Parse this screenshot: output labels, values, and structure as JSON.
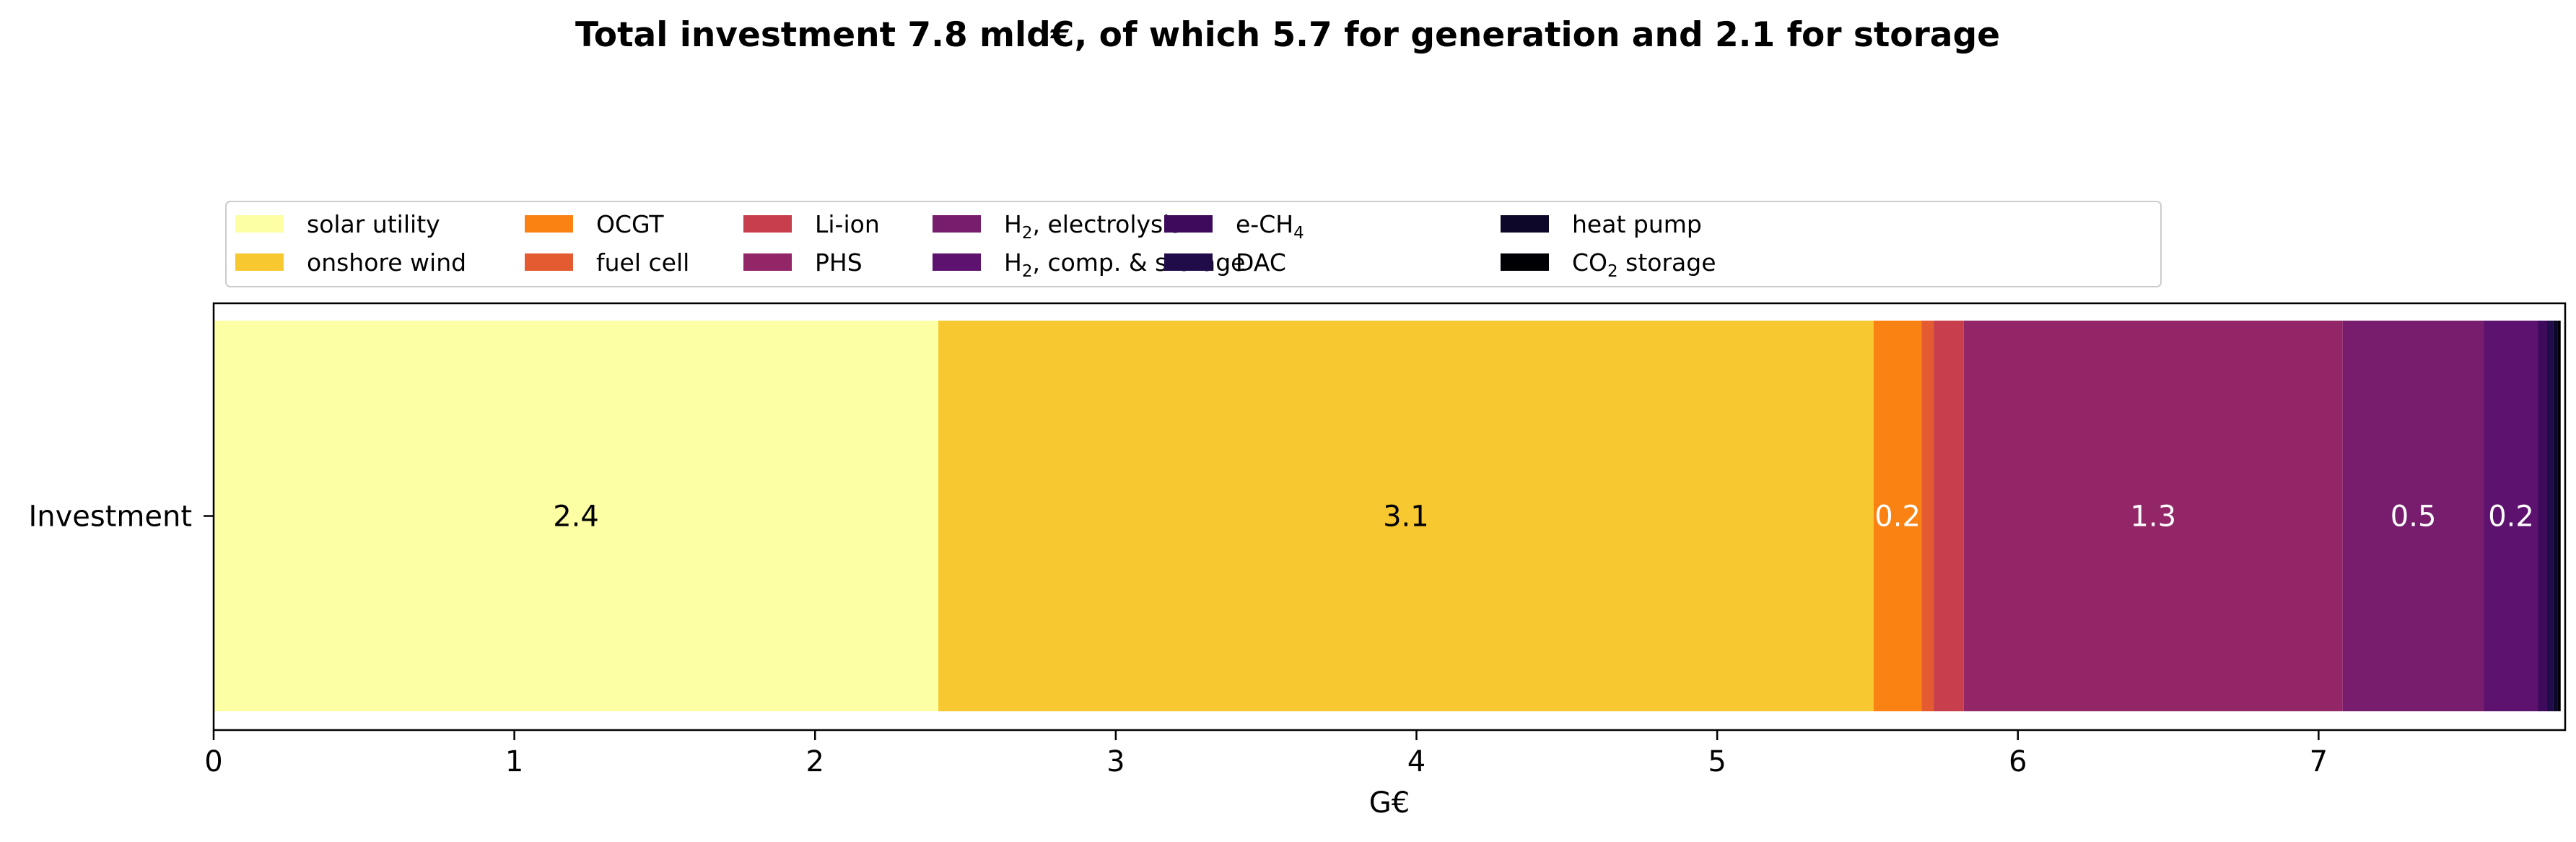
{
  "chart_data": {
    "type": "bar",
    "orientation": "horizontal",
    "stacked": true,
    "title": "Total investment 7.8 mld€, of which 5.7 for generation and 2.1 for storage",
    "categories": [
      "Investment"
    ],
    "xlabel": "G€",
    "ylabel": "",
    "xlim": [
      0,
      7.82
    ],
    "xticks": [
      "0",
      "1",
      "2",
      "3",
      "4",
      "5",
      "6",
      "7"
    ],
    "grid": false,
    "legend_position": "top",
    "series": [
      {
        "name": "solar utility",
        "value": 2.41,
        "color": "#fcffa4",
        "label": "2.4",
        "label_color": "#000000"
      },
      {
        "name": "onshore wind",
        "value": 3.11,
        "color": "#f8c830",
        "label": "3.1",
        "label_color": "#000000"
      },
      {
        "name": "OCGT",
        "value": 0.16,
        "color": "#f98213",
        "label": "0.2",
        "label_color": "#ffffff"
      },
      {
        "name": "fuel cell",
        "value": 0.04,
        "color": "#e45a31",
        "label": "",
        "label_color": "#ffffff"
      },
      {
        "name": "Li-ion",
        "value": 0.1,
        "color": "#c73e4c",
        "label": "",
        "label_color": "#ffffff"
      },
      {
        "name": "PHS",
        "value": 1.26,
        "color": "#932667",
        "label": "1.3",
        "label_color": "#ffffff"
      },
      {
        "name": "H2, electrolysis",
        "value": 0.47,
        "color": "#781c6d",
        "label": "0.5",
        "label_color": "#ffffff"
      },
      {
        "name": "H2, comp. & storage",
        "value": 0.18,
        "color": "#5c126e",
        "label": "0.2",
        "label_color": "#ffffff"
      },
      {
        "name": "e-CH4",
        "value": 0.03,
        "color": "#3e0a5c",
        "label": "",
        "label_color": "#ffffff"
      },
      {
        "name": "DAC",
        "value": 0.02,
        "color": "#210c4a",
        "label": "",
        "label_color": "#ffffff"
      },
      {
        "name": "heat pump",
        "value": 0.015,
        "color": "#0d0829",
        "label": "",
        "label_color": "#ffffff"
      },
      {
        "name": "CO2 storage",
        "value": 0.01,
        "color": "#000004",
        "label": "",
        "label_color": "#ffffff"
      }
    ]
  },
  "legend_display": [
    {
      "base": "solar utility",
      "sub": "",
      "tail": ""
    },
    {
      "base": "onshore wind",
      "sub": "",
      "tail": ""
    },
    {
      "base": "OCGT",
      "sub": "",
      "tail": ""
    },
    {
      "base": "fuel cell",
      "sub": "",
      "tail": ""
    },
    {
      "base": "Li-ion",
      "sub": "",
      "tail": ""
    },
    {
      "base": "PHS",
      "sub": "",
      "tail": ""
    },
    {
      "base": "H",
      "sub": "2",
      "tail": ", electrolysis"
    },
    {
      "base": "H",
      "sub": "2",
      "tail": ", comp. & storage"
    },
    {
      "base": "e-CH",
      "sub": "4",
      "tail": ""
    },
    {
      "base": "DAC",
      "sub": "",
      "tail": ""
    },
    {
      "base": "heat pump",
      "sub": "",
      "tail": ""
    },
    {
      "base": "CO",
      "sub": "2",
      "tail": " storage"
    }
  ]
}
